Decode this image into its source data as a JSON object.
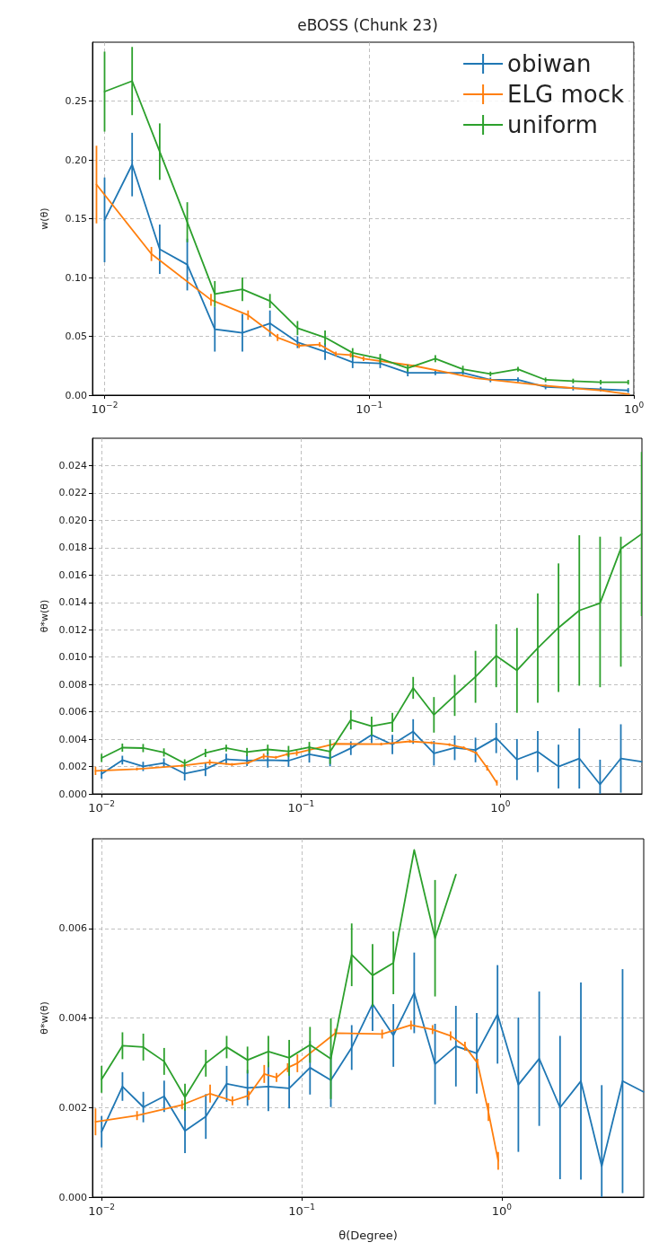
{
  "chart_data": [
    {
      "type": "line",
      "title": "eBOSS (Chunk 23)",
      "ylabel": "w(θ)",
      "xlim": [
        0.009,
        1
      ],
      "ylim": [
        0,
        0.3
      ],
      "log": "x",
      "grid": true,
      "legend": "top right",
      "xticks": [
        {
          "value": 0.01,
          "label": "10$^{−2}$"
        },
        {
          "value": 0.1,
          "label": "10$^{−1}$"
        },
        {
          "value": 1,
          "label": "10$^{0}$"
        }
      ],
      "yticks": [
        {
          "value": 0,
          "label": "0.00"
        },
        {
          "value": 0.05,
          "label": "0.05"
        },
        {
          "value": 0.1,
          "label": "0.10"
        },
        {
          "value": 0.15,
          "label": "0.15"
        },
        {
          "value": 0.2,
          "label": "0.20"
        },
        {
          "value": 0.25,
          "label": "0.25"
        }
      ],
      "series": [
        {
          "name": "obiwan",
          "color": "#1f77b4",
          "x": [
            0.01,
            0.01271,
            0.016155,
            0.020533,
            0.026098,
            0.033171,
            0.042161,
            0.053588,
            0.068111,
            0.08657,
            0.11003,
            0.13985,
            0.17775,
            0.22593,
            0.28716,
            0.36498,
            0.4639,
            0.58963,
            0.74943,
            0.95209
          ],
          "values": [
            0.149,
            0.196,
            0.124,
            0.111,
            0.056,
            0.053,
            0.061,
            0.045,
            0.037,
            0.028,
            0.027,
            0.019,
            0.019,
            0.019,
            0.013,
            0.013,
            0.007,
            0.006,
            0.005,
            0.004
          ],
          "errors": [
            0.036,
            0.027,
            0.021,
            0.022,
            0.019,
            0.016,
            0.011,
            0.005,
            0.007,
            0.005,
            0.004,
            0.003,
            0.002,
            0.002,
            0.002,
            0.002,
            0.002,
            0.002,
            0.002,
            0.002
          ]
        },
        {
          "name": "ELG mock",
          "color": "#ff7f0e",
          "x": [
            0.00932,
            0.01503,
            0.02524,
            0.03485,
            0.04506,
            0.05432,
            0.06497,
            0.07482,
            0.08508,
            0.09517,
            0.1471,
            0.2523,
            0.3517,
            0.4508,
            0.5546,
            0.6546,
            0.7568,
            0.8572,
            0.9594
          ],
          "values": [
            0.179,
            0.12,
            0.081,
            0.068,
            0.049,
            0.042,
            0.043,
            0.035,
            0.034,
            0.031,
            0.025,
            0.0144,
            0.0109,
            0.0083,
            0.0065,
            0.0051,
            0.004,
            0.0022,
            0.0008
          ],
          "errors": [
            0.033,
            0.006,
            0.005,
            0.004,
            0.003,
            0.002,
            0.002,
            0.002,
            0.002,
            0.002,
            0.001,
            null,
            null,
            null,
            null,
            null,
            null,
            null,
            null
          ]
        },
        {
          "name": "uniform",
          "color": "#2ca02c",
          "x": [
            0.01,
            0.01271,
            0.016155,
            0.020533,
            0.026098,
            0.033171,
            0.042161,
            0.053588,
            0.068111,
            0.08657,
            0.11003,
            0.13985,
            0.17775,
            0.22593,
            0.28716,
            0.36498,
            0.4639,
            0.58963,
            0.74943,
            0.95209
          ],
          "values": [
            0.258,
            0.267,
            0.207,
            0.147,
            0.086,
            0.09,
            0.08,
            0.057,
            0.049,
            0.036,
            0.031,
            0.023,
            0.031,
            0.022,
            0.018,
            0.022,
            0.013,
            0.012,
            0.011,
            0.011
          ],
          "errors": [
            0.034,
            0.029,
            0.024,
            0.017,
            0.011,
            0.01,
            0.006,
            0.006,
            0.006,
            0.004,
            0.004,
            0.003,
            0.003,
            0.003,
            0.002,
            0.002,
            0.002,
            0.002,
            0.002,
            0.002
          ]
        }
      ]
    },
    {
      "type": "line",
      "ylabel": "θ*w(θ)",
      "xlim": [
        0.009,
        5.12
      ],
      "ylim": [
        0,
        0.026
      ],
      "log": "x",
      "grid": true,
      "xticks": [
        {
          "value": 0.01,
          "label": "10$^{−2}$"
        },
        {
          "value": 0.1,
          "label": "10$^{−1}$"
        },
        {
          "value": 1,
          "label": "10$^{0}$"
        }
      ],
      "yticks": [
        {
          "value": 0,
          "label": "0.000"
        },
        {
          "value": 0.002,
          "label": "0.002"
        },
        {
          "value": 0.004,
          "label": "0.004"
        },
        {
          "value": 0.006,
          "label": "0.006"
        },
        {
          "value": 0.008,
          "label": "0.008"
        },
        {
          "value": 0.01,
          "label": "0.010"
        },
        {
          "value": 0.012,
          "label": "0.012"
        },
        {
          "value": 0.014,
          "label": "0.014"
        },
        {
          "value": 0.016,
          "label": "0.016"
        },
        {
          "value": 0.018,
          "label": "0.018"
        },
        {
          "value": 0.02,
          "label": "0.020"
        },
        {
          "value": 0.022,
          "label": "0.022"
        },
        {
          "value": 0.024,
          "label": "0.024"
        }
      ],
      "series": [
        {
          "color": "#1f77b4",
          "x": [
            0.01,
            0.01271,
            0.016155,
            0.020533,
            0.026098,
            0.033171,
            0.042161,
            0.053588,
            0.068111,
            0.08657,
            0.11003,
            0.13985,
            0.17775,
            0.22593,
            0.28716,
            0.36498,
            0.4639,
            0.58963,
            0.74943,
            0.95209,
            1.2101,
            1.5381,
            1.9549,
            2.4848,
            3.1583,
            4.0142,
            5.1022
          ],
          "values": [
            0.00146,
            0.00247,
            0.00201,
            0.00225,
            0.00148,
            0.0018,
            0.00253,
            0.00244,
            0.00247,
            0.00243,
            0.00289,
            0.00261,
            0.00334,
            0.00431,
            0.00361,
            0.00456,
            0.00297,
            0.00337,
            0.00321,
            0.00408,
            0.00251,
            0.00309,
            0.002,
            0.00259,
            0.00069,
            0.00259,
            0.00235
          ],
          "errors": [
            0.00035,
            0.00032,
            0.00034,
            0.00035,
            0.0005,
            0.0005,
            0.0004,
            0.0004,
            0.00055,
            0.00045,
            0.0006,
            0.0006,
            0.0005,
            0.0006,
            0.0007,
            0.0009,
            0.0009,
            0.0009,
            0.0009,
            0.0011,
            0.0015,
            0.0015,
            0.0016,
            0.0022,
            [
              0,
              0.0025
            ],
            0.0025,
            null
          ]
        },
        {
          "color": "#ff7f0e",
          "x": [
            0.00932,
            0.01503,
            0.02524,
            0.03485,
            0.04506,
            0.05432,
            0.06497,
            0.07482,
            0.08508,
            0.09517,
            0.1471,
            0.2523,
            0.3517,
            0.4508,
            0.5546,
            0.6546,
            0.7568,
            0.8572,
            0.9594
          ],
          "values": [
            0.00168,
            0.00182,
            0.00206,
            0.00231,
            0.00215,
            0.00227,
            0.00275,
            0.00267,
            0.00289,
            0.00299,
            0.00366,
            0.00364,
            0.00384,
            0.00374,
            0.0036,
            0.00337,
            0.00299,
            0.0019,
            0.00081
          ],
          "errors": [
            0.0003,
            0.0001,
            0.0001,
            0.0002,
            0.0001,
            0.0001,
            0.0002,
            0.0001,
            0.0001,
            0.0002,
            0.0001,
            0.0001,
            0.0001,
            0.0001,
            0.0001,
            0.0001,
            0.0001,
            0.0002,
            0.0002
          ]
        },
        {
          "color": "#2ca02c",
          "x": [
            0.01,
            0.01271,
            0.016155,
            0.020533,
            0.026098,
            0.033171,
            0.042161,
            0.053588,
            0.068111,
            0.08657,
            0.11003,
            0.13985,
            0.17775,
            0.22593,
            0.28716,
            0.36498,
            0.4639,
            0.58963,
            0.74943,
            0.95209,
            1.2101,
            1.5381,
            1.9549,
            2.4848,
            3.1583,
            4.0142,
            5.1022
          ],
          "values": [
            0.00263,
            0.00338,
            0.00335,
            0.00303,
            0.00223,
            0.00299,
            0.00335,
            0.00306,
            0.00325,
            0.00311,
            0.0034,
            0.00309,
            0.00541,
            0.00495,
            0.00523,
            0.00775,
            0.00578,
            0.0072,
            0.00856,
            0.0101,
            0.00903,
            0.01066,
            0.01215,
            0.01341,
            0.01394,
            0.01793,
            0.019
          ],
          "errors": [
            0.0003,
            0.0003,
            0.0003,
            0.0003,
            0.0003,
            0.0003,
            0.00025,
            0.0003,
            0.00035,
            0.0004,
            0.0004,
            0.0009,
            0.0007,
            0.0007,
            0.0007,
            0.0008,
            0.0013,
            0.0015,
            0.0019,
            0.0023,
            0.0031,
            0.004,
            0.0047,
            0.0055,
            [
              0.0078,
              0.0188
            ],
            [
              0.0093,
              0.0188
            ],
            0.006
          ]
        }
      ]
    },
    {
      "type": "line",
      "ylabel": "θ*w(θ)",
      "xlabel": "θ(Degree)",
      "xlim": [
        0.009,
        5.12
      ],
      "ylim": [
        0,
        0.008
      ],
      "log": "x",
      "grid": true,
      "xticks": [
        {
          "value": 0.01,
          "label": "10$^{−2}$"
        },
        {
          "value": 0.1,
          "label": "10$^{−1}$"
        },
        {
          "value": 1,
          "label": "10$^{0}$"
        }
      ],
      "yticks": [
        {
          "value": 0,
          "label": "0.000"
        },
        {
          "value": 0.002,
          "label": "0.002"
        },
        {
          "value": 0.004,
          "label": "0.004"
        },
        {
          "value": 0.006,
          "label": "0.006"
        }
      ],
      "series": [
        {
          "color": "#1f77b4",
          "x": [
            0.01,
            0.01271,
            0.016155,
            0.020533,
            0.026098,
            0.033171,
            0.042161,
            0.053588,
            0.068111,
            0.08657,
            0.11003,
            0.13985,
            0.17775,
            0.22593,
            0.28716,
            0.36498,
            0.4639,
            0.58963,
            0.74943,
            0.95209,
            1.2101,
            1.5381,
            1.9549,
            2.4848,
            3.1583,
            4.0142,
            5.1022
          ],
          "values": [
            0.00146,
            0.00247,
            0.00201,
            0.00225,
            0.00148,
            0.0018,
            0.00253,
            0.00244,
            0.00247,
            0.00243,
            0.00289,
            0.00261,
            0.00334,
            0.00431,
            0.00361,
            0.00456,
            0.00297,
            0.00337,
            0.00321,
            0.00408,
            0.00251,
            0.00309,
            0.002,
            0.00259,
            0.00069,
            0.00259,
            0.00235
          ],
          "errors": [
            0.00035,
            0.00032,
            0.00034,
            0.00035,
            0.0005,
            0.0005,
            0.0004,
            0.0004,
            0.00055,
            0.00045,
            0.0006,
            0.0006,
            0.0005,
            0.0006,
            0.0007,
            0.0009,
            0.0009,
            0.0009,
            0.0009,
            0.0011,
            0.0015,
            0.0015,
            0.0016,
            0.0022,
            [
              0,
              0.0025
            ],
            0.0025,
            null
          ]
        },
        {
          "color": "#ff7f0e",
          "x": [
            0.00932,
            0.01503,
            0.02524,
            0.03485,
            0.04506,
            0.05432,
            0.06497,
            0.07482,
            0.08508,
            0.09517,
            0.1471,
            0.2523,
            0.3517,
            0.4508,
            0.5546,
            0.6546,
            0.7568,
            0.8572,
            0.9594
          ],
          "values": [
            0.00168,
            0.00182,
            0.00206,
            0.00231,
            0.00215,
            0.00227,
            0.00275,
            0.00267,
            0.00289,
            0.00299,
            0.00366,
            0.00364,
            0.00384,
            0.00374,
            0.0036,
            0.00337,
            0.00299,
            0.0019,
            0.00081
          ],
          "errors": [
            0.0003,
            0.0001,
            0.0001,
            0.0002,
            0.0001,
            0.0001,
            0.0002,
            0.0001,
            0.0001,
            0.0002,
            0.0001,
            0.0001,
            0.0001,
            0.0001,
            0.0001,
            0.0001,
            0.0001,
            0.0002,
            0.0002
          ]
        },
        {
          "color": "#2ca02c",
          "x": [
            0.01,
            0.01271,
            0.016155,
            0.020533,
            0.026098,
            0.033171,
            0.042161,
            0.053588,
            0.068111,
            0.08657,
            0.11003,
            0.13985,
            0.17775,
            0.22593,
            0.28716,
            0.36498,
            0.4639,
            0.58963
          ],
          "values": [
            0.00263,
            0.00338,
            0.00335,
            0.00303,
            0.00223,
            0.00299,
            0.00335,
            0.00306,
            0.00325,
            0.00311,
            0.0034,
            0.00309,
            0.00541,
            0.00495,
            0.00523,
            0.00775,
            0.00578,
            0.0072
          ],
          "errors": [
            0.0003,
            0.0003,
            0.0003,
            0.0003,
            0.0003,
            0.0003,
            0.00025,
            0.0003,
            0.00035,
            0.0004,
            0.0004,
            0.0009,
            0.0007,
            0.0007,
            0.0007,
            null,
            0.0013,
            null
          ]
        }
      ]
    }
  ]
}
